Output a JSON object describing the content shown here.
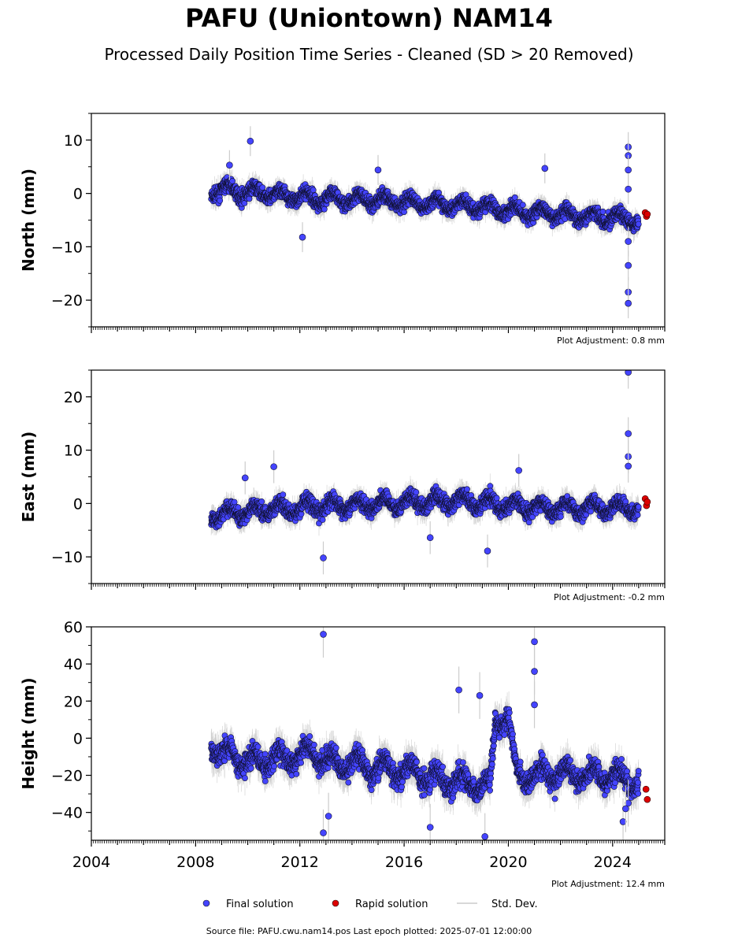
{
  "figure": {
    "title": "PAFU (Uniontown) NAM14",
    "subtitle": "Processed Daily Position Time Series - Cleaned (SD > 20 Removed)",
    "footer": "Source file: PAFU.cwu.nam14.pos  Last epoch plotted: 2025-07-01 12:00:00"
  },
  "legend": {
    "items": [
      {
        "label": "Final solution",
        "color": "#4444ff",
        "marker": "circle"
      },
      {
        "label": "Rapid solution",
        "color": "#dd0000",
        "marker": "circle"
      },
      {
        "label": "Std. Dev.",
        "color": "#cccccc",
        "marker": "line"
      }
    ]
  },
  "chart_data": [
    {
      "type": "scatter",
      "ylabel": "North (mm)",
      "xlim": [
        2004,
        2026
      ],
      "ylim": [
        -25,
        15
      ],
      "yticks": [
        10,
        0,
        -10,
        -20
      ],
      "ytick_labels": [
        "10",
        "0",
        "−10",
        "−20"
      ],
      "adjustment": "Plot Adjustment: 0.8 mm",
      "series": [
        {
          "name": "Final solution",
          "x": [
            2008.6,
            2009.0,
            2009.5,
            2010.0,
            2010.5,
            2011.0,
            2011.5,
            2012.0,
            2012.5,
            2013.0,
            2013.5,
            2014.0,
            2014.5,
            2015.0,
            2015.5,
            2016.0,
            2016.5,
            2017.0,
            2017.5,
            2018.0,
            2018.5,
            2019.0,
            2019.5,
            2020.0,
            2020.5,
            2021.0,
            2021.5,
            2022.0,
            2022.5,
            2023.0,
            2023.5,
            2024.0,
            2024.5,
            2025.0
          ],
          "y": [
            0.2,
            0.8,
            0.5,
            0.0,
            0.3,
            -0.3,
            -0.5,
            -0.6,
            -0.9,
            -1.0,
            -1.1,
            -1.2,
            -1.2,
            -1.3,
            -1.5,
            -1.6,
            -1.8,
            -1.9,
            -2.0,
            -2.2,
            -2.4,
            -2.6,
            -2.8,
            -3.2,
            -3.5,
            -3.6,
            -3.7,
            -3.9,
            -4.1,
            -4.3,
            -4.3,
            -4.5,
            -4.8,
            -5.0
          ],
          "amplitude": 2.0
        },
        {
          "name": "Final solution outliers",
          "x": [
            2010.1,
            2012.1,
            2009.3,
            2015.0,
            2021.4,
            2024.6,
            2024.6,
            2024.6,
            2024.6,
            2024.6,
            2024.6,
            2024.6,
            2024.6
          ],
          "y": [
            9.8,
            -8.2,
            5.3,
            4.4,
            4.7,
            8.7,
            7.1,
            4.4,
            0.8,
            -9.0,
            -13.5,
            -18.5,
            -20.6
          ]
        },
        {
          "name": "Rapid solution",
          "x": [
            2025.25,
            2025.3,
            2025.33
          ],
          "y": [
            -3.6,
            -4.3,
            -3.9
          ]
        }
      ]
    },
    {
      "type": "scatter",
      "ylabel": "East (mm)",
      "xlim": [
        2004,
        2026
      ],
      "ylim": [
        -15,
        25
      ],
      "yticks": [
        20,
        10,
        0,
        -10
      ],
      "ytick_labels": [
        "20",
        "10",
        "0",
        "−10"
      ],
      "adjustment": "Plot Adjustment: -0.2 mm",
      "series": [
        {
          "name": "Final solution",
          "x": [
            2008.6,
            2009.0,
            2009.5,
            2010.0,
            2010.5,
            2011.0,
            2011.5,
            2012.0,
            2012.5,
            2013.0,
            2013.5,
            2014.0,
            2014.5,
            2015.0,
            2015.5,
            2016.0,
            2016.5,
            2017.0,
            2017.5,
            2018.0,
            2018.5,
            2019.0,
            2019.5,
            2020.0,
            2020.5,
            2021.0,
            2021.5,
            2022.0,
            2022.5,
            2023.0,
            2023.5,
            2024.0,
            2024.5,
            2025.0
          ],
          "y": [
            -2.0,
            -2.3,
            -1.5,
            -1.8,
            -1.2,
            -1.0,
            -1.3,
            -0.8,
            -0.5,
            -0.6,
            -0.4,
            -0.3,
            -0.2,
            -0.1,
            0.0,
            0.2,
            0.3,
            0.3,
            0.4,
            0.5,
            0.4,
            0.3,
            0.1,
            -0.5,
            -0.6,
            -0.7,
            -0.8,
            -0.8,
            -0.9,
            -0.9,
            -0.8,
            -0.7,
            -0.8,
            -0.9
          ],
          "amplitude": 2.2
        },
        {
          "name": "Final solution outliers",
          "x": [
            2012.9,
            2011.0,
            2009.9,
            2019.2,
            2017.0,
            2020.4,
            2024.6,
            2024.6,
            2024.6,
            2024.6
          ],
          "y": [
            -10.2,
            6.9,
            4.8,
            -8.9,
            -6.4,
            6.2,
            24.6,
            13.1,
            8.8,
            7.0
          ]
        },
        {
          "name": "Rapid solution",
          "x": [
            2025.25,
            2025.3,
            2025.33
          ],
          "y": [
            0.9,
            -0.4,
            0.3
          ]
        }
      ]
    },
    {
      "type": "scatter",
      "ylabel": "Height (mm)",
      "xlim": [
        2004,
        2026
      ],
      "ylim": [
        -55,
        60
      ],
      "yticks": [
        60,
        40,
        20,
        0,
        -20,
        -40
      ],
      "ytick_labels": [
        "60",
        "40",
        "20",
        "0",
        "−20",
        "−40"
      ],
      "xticks": [
        2004,
        2008,
        2012,
        2016,
        2020,
        2024
      ],
      "xtick_labels": [
        "2004",
        "2008",
        "2012",
        "2016",
        "2020",
        "2024"
      ],
      "adjustment": "Plot Adjustment: 12.4 mm",
      "series": [
        {
          "name": "Final solution",
          "x": [
            2008.6,
            2009.0,
            2009.5,
            2010.0,
            2010.5,
            2011.0,
            2011.5,
            2012.0,
            2012.5,
            2013.0,
            2013.5,
            2014.0,
            2014.5,
            2015.0,
            2015.5,
            2016.0,
            2016.5,
            2017.0,
            2017.5,
            2018.0,
            2018.5,
            2019.0,
            2019.3,
            2019.5,
            2020.0,
            2020.3,
            2020.5,
            2021.0,
            2021.5,
            2022.0,
            2022.5,
            2023.0,
            2023.5,
            2024.0,
            2024.5,
            2025.0
          ],
          "y": [
            -3,
            -8,
            -10,
            -12,
            -13,
            -10,
            -11,
            -9,
            -8,
            -12,
            -14,
            -13,
            -15,
            -16,
            -17,
            -18,
            -19,
            -21,
            -22,
            -23,
            -24,
            -25,
            -28,
            10,
            12,
            -20,
            -21,
            -20,
            -19,
            -19,
            -20,
            -19,
            -21,
            -20,
            -22,
            -24
          ],
          "amplitude": 9.0
        },
        {
          "name": "Final solution outliers",
          "x": [
            2012.9,
            2012.9,
            2013.1,
            2018.1,
            2018.9,
            2021.0,
            2021.0,
            2021.0,
            2019.1,
            2017.0,
            2024.4,
            2024.6,
            2024.5
          ],
          "y": [
            56,
            -51,
            -42,
            26,
            23,
            52,
            36,
            18,
            -53,
            -48,
            -45,
            -35,
            -38
          ]
        },
        {
          "name": "Rapid solution",
          "x": [
            2025.28,
            2025.33
          ],
          "y": [
            -27.5,
            -33.0
          ]
        }
      ]
    }
  ]
}
